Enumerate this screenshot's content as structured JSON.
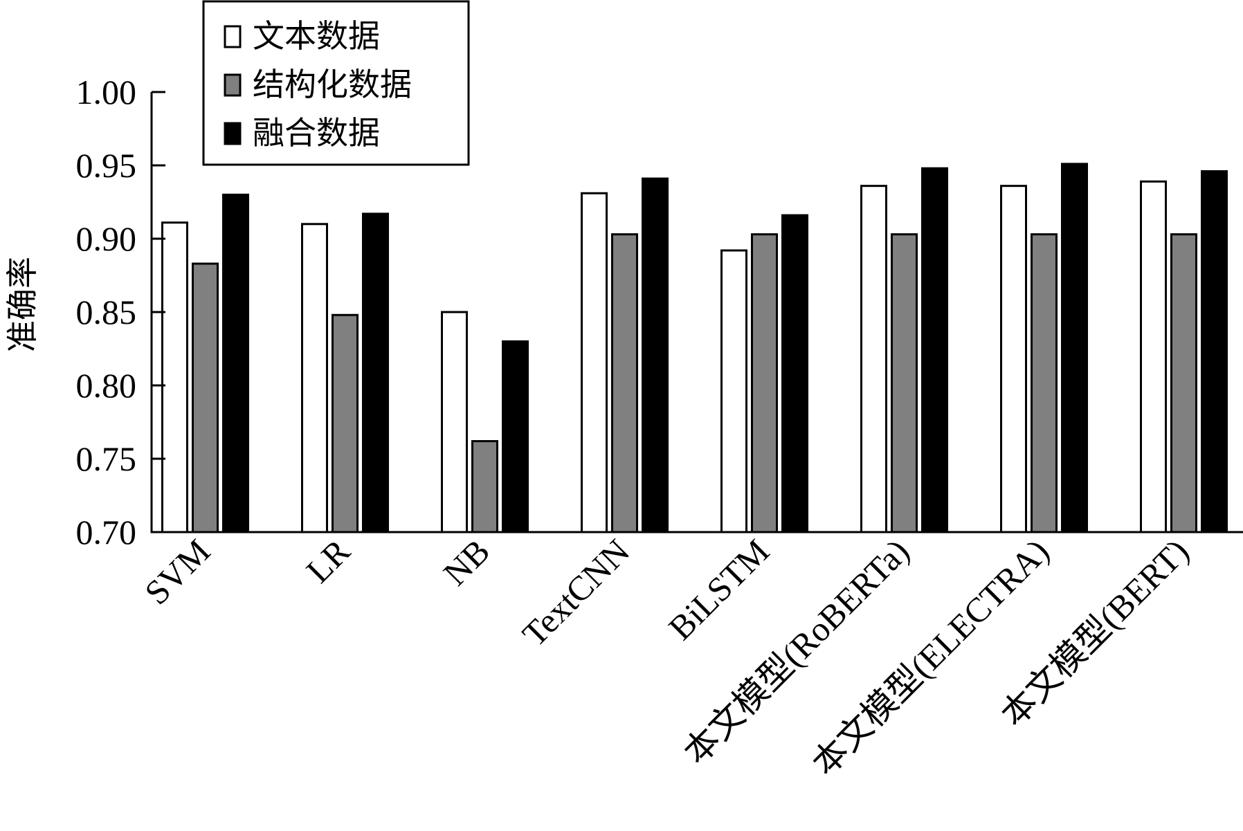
{
  "chart_data": {
    "type": "bar",
    "title": "",
    "xlabel": "",
    "ylabel": "准确率",
    "ylim": [
      0.7,
      1.0
    ],
    "yticks": [
      "0.70",
      "0.75",
      "0.80",
      "0.85",
      "0.90",
      "0.95",
      "1.00"
    ],
    "grid": false,
    "legend_position": "top-left",
    "categories": [
      "SVM",
      "LR",
      "NB",
      "TextCNN",
      "BiLSTM",
      "本文模型(RoBERTa)",
      "本文模型(ELECTRA)",
      "本文模型(BERT)"
    ],
    "series": [
      {
        "name": "文本数据",
        "color": "#ffffff",
        "values": [
          0.911,
          0.91,
          0.85,
          0.931,
          0.892,
          0.936,
          0.936,
          0.939
        ]
      },
      {
        "name": "结构化数据",
        "color": "#808080",
        "values": [
          0.883,
          0.848,
          0.762,
          0.903,
          0.903,
          0.903,
          0.903,
          0.903
        ]
      },
      {
        "name": "融合数据",
        "color": "#000000",
        "values": [
          0.93,
          0.917,
          0.83,
          0.941,
          0.916,
          0.948,
          0.951,
          0.946
        ]
      }
    ]
  }
}
